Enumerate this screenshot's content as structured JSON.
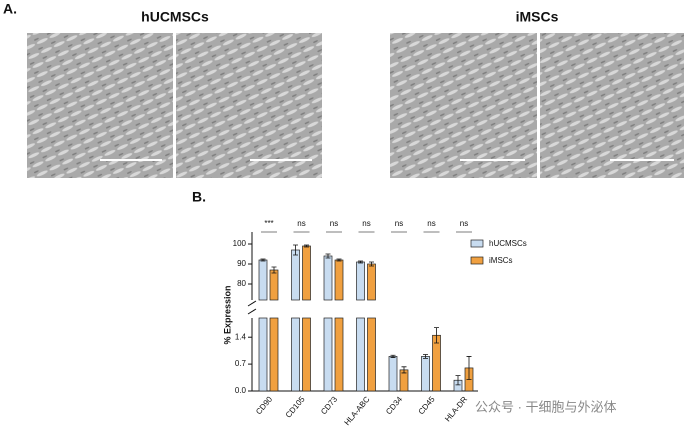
{
  "panel_a": {
    "label": "A.",
    "titles": [
      "hUCMSCs",
      "iMSCs"
    ]
  },
  "chart_data": {
    "type": "bar",
    "panel_label": "B.",
    "ylabel": "% Expression",
    "categories": [
      "CD90",
      "CD105",
      "CD73",
      "HLA-ABC",
      "CD34",
      "CD45",
      "HLA-DR"
    ],
    "series": [
      {
        "name": "hUCMSCs",
        "color": "#c8dcf0",
        "values": [
          92,
          97,
          94,
          91,
          0.9,
          0.9,
          0.28
        ],
        "errors": [
          0.5,
          2.5,
          1,
          0.5,
          0.03,
          0.05,
          0.12
        ]
      },
      {
        "name": "iMSCs",
        "color": "#f0a040",
        "values": [
          87,
          99,
          92,
          90,
          0.55,
          1.45,
          0.6
        ],
        "errors": [
          1.5,
          0.5,
          0.5,
          1,
          0.08,
          0.2,
          0.3
        ]
      }
    ],
    "significance": [
      "***",
      "ns",
      "ns",
      "ns",
      "ns",
      "ns",
      "ns"
    ],
    "y_segments": [
      {
        "ylim": [
          0,
          1.9
        ],
        "yticks": [
          {
            "value": 0,
            "label": "0.0"
          },
          0.7,
          1.4
        ]
      },
      {
        "ylim": [
          72,
          106
        ],
        "yticks": [
          80,
          90,
          100
        ]
      }
    ],
    "legend": "upper right"
  },
  "watermark": "公众号 · 干细胞与外泌体"
}
